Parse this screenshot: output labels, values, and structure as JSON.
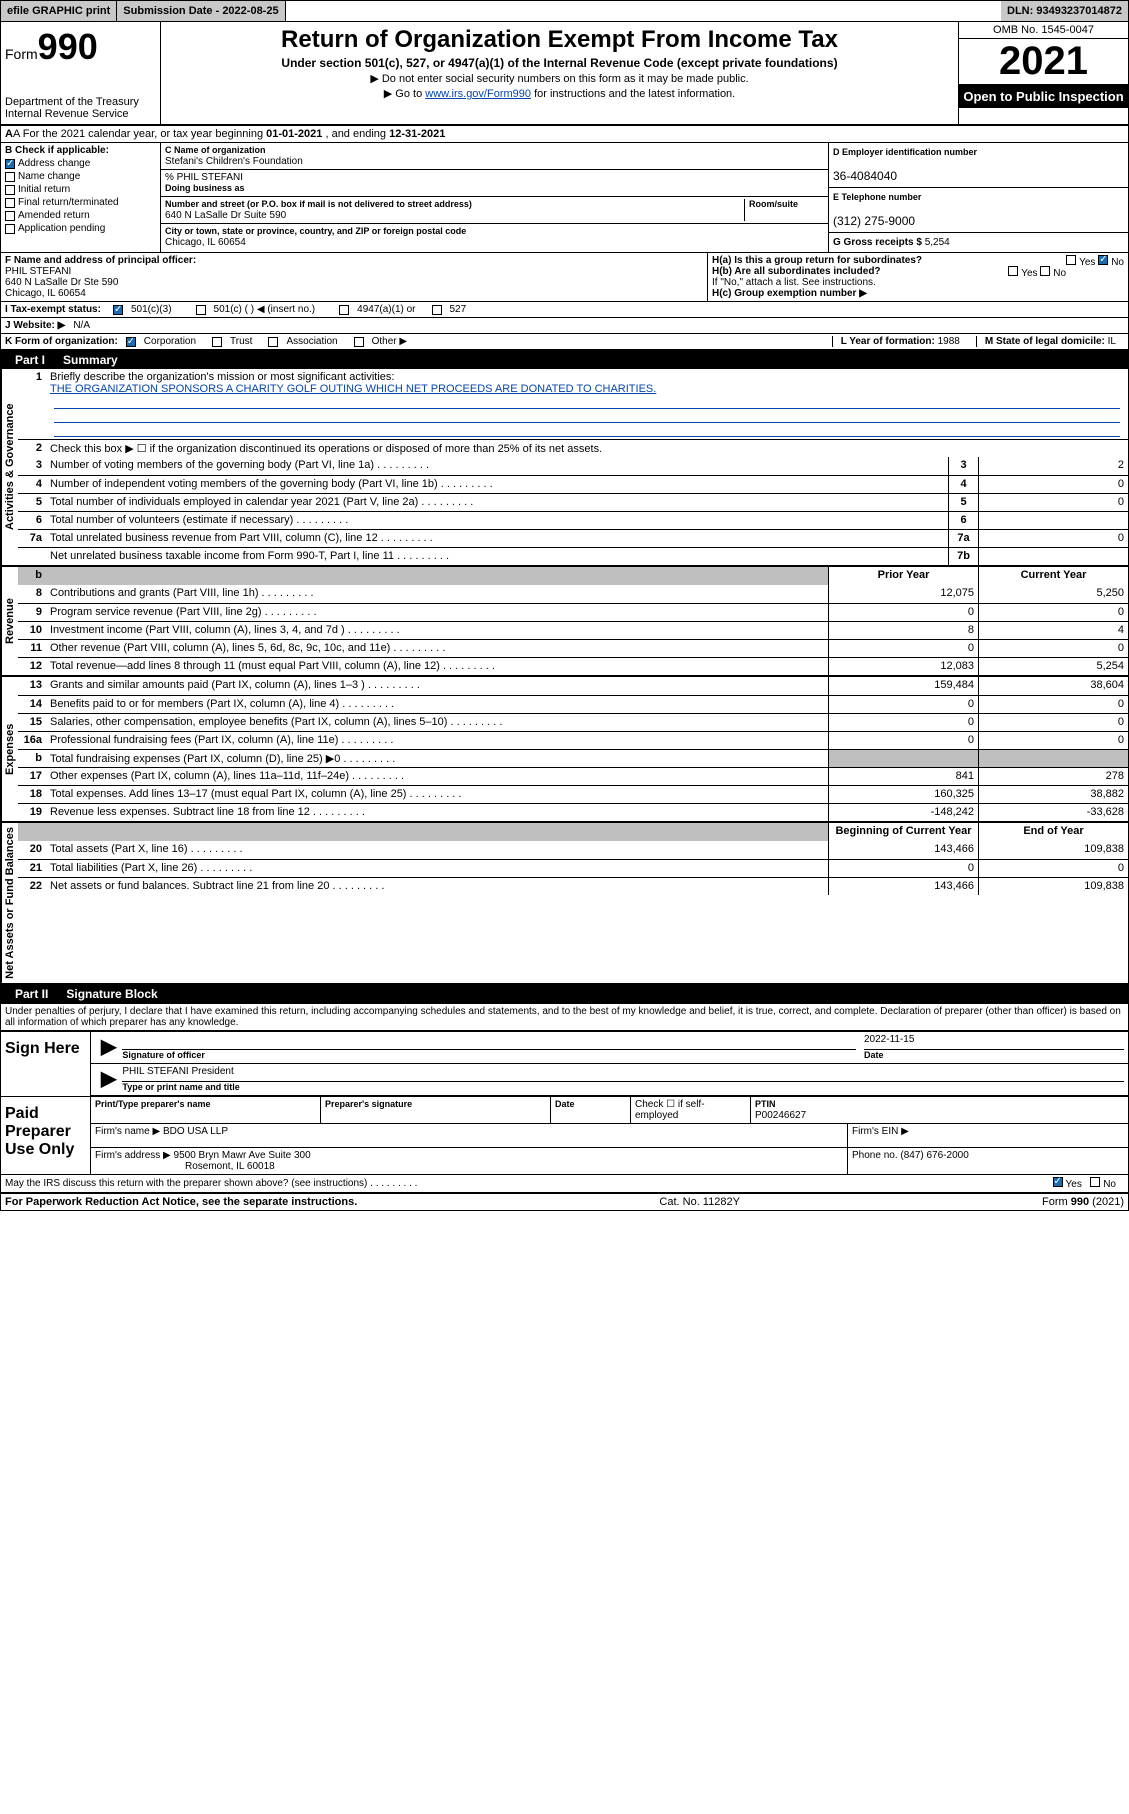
{
  "topbar": {
    "efile": "efile GRAPHIC print",
    "submission_label": "Submission Date - 2022-08-25",
    "dln_label": "DLN: 93493237014872"
  },
  "header": {
    "form_prefix": "Form",
    "form_number": "990",
    "title": "Return of Organization Exempt From Income Tax",
    "subtitle": "Under section 501(c), 527, or 4947(a)(1) of the Internal Revenue Code (except private foundations)",
    "note1": "▶ Do not enter social security numbers on this form as it may be made public.",
    "note2_pre": "▶ Go to ",
    "note2_link": "www.irs.gov/Form990",
    "note2_post": " for instructions and the latest information.",
    "dept": "Department of the Treasury",
    "irs": "Internal Revenue Service",
    "omb": "OMB No. 1545-0047",
    "year": "2021",
    "open": "Open to Public Inspection"
  },
  "rowA": {
    "text_pre": "A For the 2021 calendar year, or tax year beginning ",
    "begin": "01-01-2021",
    "mid": " , and ending ",
    "end": "12-31-2021"
  },
  "checkB": {
    "title": "B Check if applicable:",
    "items": [
      {
        "label": "Address change",
        "checked": true
      },
      {
        "label": "Name change",
        "checked": false
      },
      {
        "label": "Initial return",
        "checked": false
      },
      {
        "label": "Final return/terminated",
        "checked": false
      },
      {
        "label": "Amended return",
        "checked": false
      },
      {
        "label": "Application pending",
        "checked": false
      }
    ]
  },
  "orgblock": {
    "c_label": "C Name of organization",
    "org_name": "Stefani's Children's Foundation",
    "care_of": "% PHIL STEFANI",
    "dba_label": "Doing business as",
    "street_label": "Number and street (or P.O. box if mail is not delivered to street address)",
    "room_label": "Room/suite",
    "street": "640 N LaSalle Dr Suite 590",
    "city_label": "City or town, state or province, country, and ZIP or foreign postal code",
    "city": "Chicago, IL  60654"
  },
  "rightcol": {
    "d_label": "D Employer identification number",
    "ein": "36-4084040",
    "e_label": "E Telephone number",
    "phone": "(312) 275-9000",
    "g_label": "G Gross receipts $ ",
    "gross": "5,254"
  },
  "rowF": {
    "f_label": "F Name and address of principal officer:",
    "name": "PHIL STEFANI",
    "addr1": "640 N LaSalle Dr Ste 590",
    "addr2": "Chicago, IL  60654"
  },
  "rowH": {
    "ha": "H(a)  Is this a group return for subordinates?",
    "hb": "H(b)  Are all subordinates included?",
    "hnote": "If \"No,\" attach a list. See instructions.",
    "hc": "H(c)  Group exemption number ▶",
    "yes": "Yes",
    "no": "No"
  },
  "taxexempt": {
    "i_label": "I   Tax-exempt status:",
    "opt1": "501(c)(3)",
    "opt2": "501(c) (  ) ◀ (insert no.)",
    "opt3": "4947(a)(1) or",
    "opt4": "527"
  },
  "website": {
    "label": "J   Website: ▶",
    "value": "N/A"
  },
  "rowK": {
    "k_label": "K Form of organization:",
    "corp": "Corporation",
    "trust": "Trust",
    "assoc": "Association",
    "other": "Other ▶",
    "l_label": "L Year of formation: ",
    "l_val": "1988",
    "m_label": "M State of legal domicile: ",
    "m_val": "IL"
  },
  "part1": {
    "label": "Part I",
    "title": "Summary",
    "line1_label": "Briefly describe the organization's mission or most significant activities:",
    "mission": "THE ORGANIZATION SPONSORS A CHARITY GOLF OUTING WHICH NET PROCEEDS ARE DONATED TO CHARITIES.",
    "line2": "Check this box ▶ ☐  if the organization discontinued its operations or disposed of more than 25% of its net assets.",
    "tabs": {
      "gov": "Activities & Governance",
      "rev": "Revenue",
      "exp": "Expenses",
      "net": "Net Assets or Fund Balances"
    },
    "col_prior": "Prior Year",
    "col_current": "Current Year",
    "col_begin": "Beginning of Current Year",
    "col_end": "End of Year",
    "gov_lines": [
      {
        "n": "3",
        "t": "Number of voting members of the governing body (Part VI, line 1a)",
        "box": "3",
        "v": "2"
      },
      {
        "n": "4",
        "t": "Number of independent voting members of the governing body (Part VI, line 1b)",
        "box": "4",
        "v": "0"
      },
      {
        "n": "5",
        "t": "Total number of individuals employed in calendar year 2021 (Part V, line 2a)",
        "box": "5",
        "v": "0"
      },
      {
        "n": "6",
        "t": "Total number of volunteers (estimate if necessary)",
        "box": "6",
        "v": ""
      },
      {
        "n": "7a",
        "t": "Total unrelated business revenue from Part VIII, column (C), line 12",
        "box": "7a",
        "v": "0"
      },
      {
        "n": "",
        "t": "Net unrelated business taxable income from Form 990-T, Part I, line 11",
        "box": "7b",
        "v": ""
      }
    ],
    "rev_lines": [
      {
        "n": "8",
        "t": "Contributions and grants (Part VIII, line 1h)",
        "p": "12,075",
        "c": "5,250"
      },
      {
        "n": "9",
        "t": "Program service revenue (Part VIII, line 2g)",
        "p": "0",
        "c": "0"
      },
      {
        "n": "10",
        "t": "Investment income (Part VIII, column (A), lines 3, 4, and 7d )",
        "p": "8",
        "c": "4"
      },
      {
        "n": "11",
        "t": "Other revenue (Part VIII, column (A), lines 5, 6d, 8c, 9c, 10c, and 11e)",
        "p": "0",
        "c": "0"
      },
      {
        "n": "12",
        "t": "Total revenue—add lines 8 through 11 (must equal Part VIII, column (A), line 12)",
        "p": "12,083",
        "c": "5,254"
      }
    ],
    "exp_lines": [
      {
        "n": "13",
        "t": "Grants and similar amounts paid (Part IX, column (A), lines 1–3 )",
        "p": "159,484",
        "c": "38,604"
      },
      {
        "n": "14",
        "t": "Benefits paid to or for members (Part IX, column (A), line 4)",
        "p": "0",
        "c": "0"
      },
      {
        "n": "15",
        "t": "Salaries, other compensation, employee benefits (Part IX, column (A), lines 5–10)",
        "p": "0",
        "c": "0"
      },
      {
        "n": "16a",
        "t": "Professional fundraising fees (Part IX, column (A), line 11e)",
        "p": "0",
        "c": "0"
      },
      {
        "n": "b",
        "t": "Total fundraising expenses (Part IX, column (D), line 25) ▶0",
        "p": "",
        "c": "",
        "gray": true
      },
      {
        "n": "17",
        "t": "Other expenses (Part IX, column (A), lines 11a–11d, 11f–24e)",
        "p": "841",
        "c": "278"
      },
      {
        "n": "18",
        "t": "Total expenses. Add lines 13–17 (must equal Part IX, column (A), line 25)",
        "p": "160,325",
        "c": "38,882"
      },
      {
        "n": "19",
        "t": "Revenue less expenses. Subtract line 18 from line 12",
        "p": "-148,242",
        "c": "-33,628"
      }
    ],
    "net_lines": [
      {
        "n": "20",
        "t": "Total assets (Part X, line 16)",
        "p": "143,466",
        "c": "109,838"
      },
      {
        "n": "21",
        "t": "Total liabilities (Part X, line 26)",
        "p": "0",
        "c": "0"
      },
      {
        "n": "22",
        "t": "Net assets or fund balances. Subtract line 21 from line 20",
        "p": "143,466",
        "c": "109,838"
      }
    ]
  },
  "part2": {
    "label": "Part II",
    "title": "Signature Block",
    "penalties": "Under penalties of perjury, I declare that I have examined this return, including accompanying schedules and statements, and to the best of my knowledge and belief, it is true, correct, and complete. Declaration of preparer (other than officer) is based on all information of which preparer has any knowledge."
  },
  "sign": {
    "here": "Sign Here",
    "sig_label": "Signature of officer",
    "date_label": "Date",
    "date": "2022-11-15",
    "name": "PHIL STEFANI President",
    "name_label": "Type or print name and title"
  },
  "preparer": {
    "title": "Paid Preparer Use Only",
    "col1": "Print/Type preparer's name",
    "col2": "Preparer's signature",
    "col3": "Date",
    "check_label": "Check ☐ if self-employed",
    "ptin_label": "PTIN",
    "ptin": "P00246627",
    "firm_name_label": "Firm's name    ▶",
    "firm_name": "BDO USA LLP",
    "firm_ein_label": "Firm's EIN ▶",
    "firm_addr_label": "Firm's address ▶",
    "firm_addr": "9500 Bryn Mawr Ave Suite 300",
    "firm_city": "Rosemont, IL  60018",
    "phone_label": "Phone no. ",
    "phone": "(847) 676-2000"
  },
  "discuss": {
    "text": "May the IRS discuss this return with the preparer shown above? (see instructions)",
    "yes": "Yes",
    "no": "No"
  },
  "footer": {
    "left": "For Paperwork Reduction Act Notice, see the separate instructions.",
    "mid": "Cat. No. 11282Y",
    "right": "Form 990 (2021)"
  }
}
